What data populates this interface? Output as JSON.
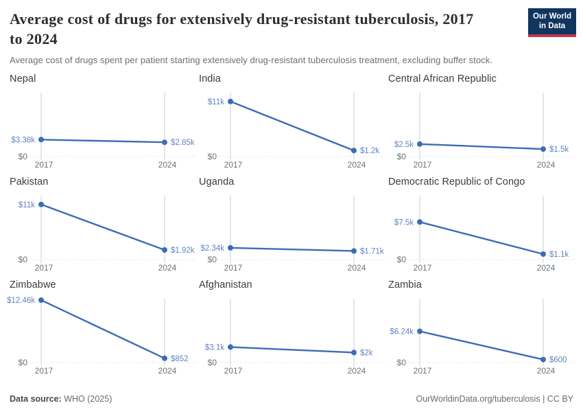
{
  "header": {
    "title": "Average cost of drugs for extensively drug-resistant tuberculosis, 2017 to 2024",
    "subtitle": "Average cost of drugs spent per patient starting extensively drug-resistant tuberculosis treatment, excluding buffer stock.",
    "logo_line1": "Our World",
    "logo_line2": "in Data"
  },
  "footer": {
    "datasource_label": "Data source:",
    "datasource_value": "WHO (2025)",
    "url": "OurWorldinData.org/tuberculosis",
    "separator": "|",
    "license": "CC BY"
  },
  "colors": {
    "series": "#3d6cb4",
    "value_label": "#6283c1",
    "gridline": "#c9ced3",
    "zero_line": "#dadada",
    "tick_label": "#6a737b",
    "logo_bg": "#12355f",
    "logo_stripe": "#c0384c"
  },
  "chart_data": {
    "type": "line",
    "layout": "3x3 small multiples, shared y scale",
    "x": [
      2017,
      2024
    ],
    "x_tick_labels": [
      "2017",
      "2024"
    ],
    "ylim": [
      0,
      12750
    ],
    "y_unit": "US$",
    "y_zero_label": "$0",
    "grid": "vertical gridline at each year; dotted zero baseline",
    "legend": "none",
    "panels": [
      {
        "title": "Nepal",
        "values": [
          3380,
          2850
        ],
        "labels": [
          "$3.38k",
          "$2.85k"
        ]
      },
      {
        "title": "India",
        "values": [
          11000,
          1200
        ],
        "labels": [
          "$11k",
          "$1.2k"
        ]
      },
      {
        "title": "Central African Republic",
        "values": [
          2500,
          1500
        ],
        "labels": [
          "$2.5k",
          "$1.5k"
        ]
      },
      {
        "title": "Pakistan",
        "values": [
          11000,
          1920
        ],
        "labels": [
          "$11k",
          "$1.92k"
        ]
      },
      {
        "title": "Uganda",
        "values": [
          2340,
          1710
        ],
        "labels": [
          "$2.34k",
          "$1.71k"
        ]
      },
      {
        "title": "Democratic Republic of Congo",
        "values": [
          7500,
          1100
        ],
        "labels": [
          "$7.5k",
          "$1.1k"
        ]
      },
      {
        "title": "Zimbabwe",
        "values": [
          12460,
          852
        ],
        "labels": [
          "$12.46k",
          "$852"
        ]
      },
      {
        "title": "Afghanistan",
        "values": [
          3100,
          2000
        ],
        "labels": [
          "$3.1k",
          "$2k"
        ]
      },
      {
        "title": "Zambia",
        "values": [
          6240,
          600
        ],
        "labels": [
          "$6.24k",
          "$600"
        ]
      }
    ]
  }
}
